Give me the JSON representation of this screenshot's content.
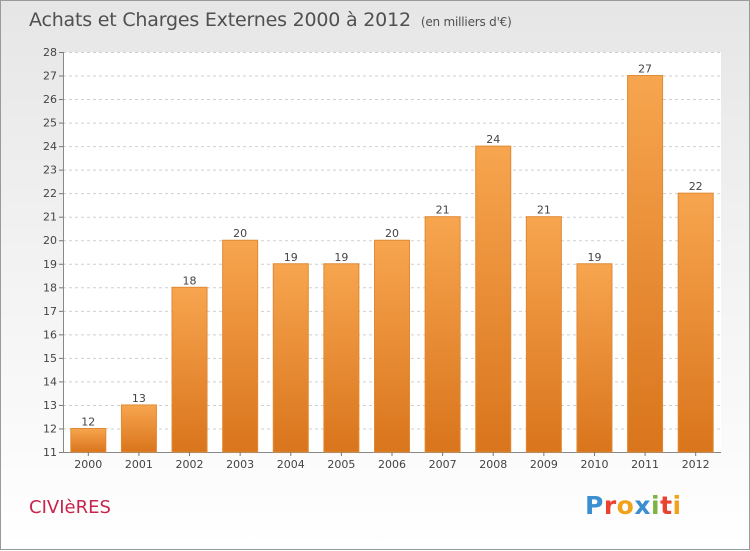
{
  "header": {
    "title": "Achats et Charges Externes 2000 à 2012",
    "unit": "(en milliers d'€)"
  },
  "footer": {
    "commune": "CIVIèRES",
    "logo_letters": [
      "P",
      "r",
      "o",
      "x",
      "i",
      "t",
      "i"
    ],
    "logo_colors": [
      "#3b8fd1",
      "#e8432e",
      "#f0a21a",
      "#3b8fd1",
      "#7cb342",
      "#e8432e",
      "#f0a21a"
    ]
  },
  "colors": {
    "bar_top": "#f7a54f",
    "bar_bottom": "#d9751c",
    "bar_edge": "#e08a33",
    "grid": "#cfcfcf",
    "title": "#505050",
    "commune": "#c8244c"
  },
  "chart_data": {
    "type": "bar",
    "title": "Achats et Charges Externes 2000 à 2012",
    "xlabel": "",
    "ylabel": "",
    "categories": [
      "2000",
      "2001",
      "2002",
      "2003",
      "2004",
      "2005",
      "2006",
      "2007",
      "2008",
      "2009",
      "2010",
      "2011",
      "2012"
    ],
    "values": [
      12,
      13,
      18,
      20,
      19,
      19,
      20,
      21,
      24,
      21,
      19,
      27,
      22
    ],
    "ylim": [
      11,
      28
    ],
    "yticks": [
      11,
      12,
      13,
      14,
      15,
      16,
      17,
      18,
      19,
      20,
      21,
      22,
      23,
      24,
      25,
      26,
      27,
      28
    ],
    "grid": true,
    "grid_style": "dashed",
    "data_labels": true
  }
}
